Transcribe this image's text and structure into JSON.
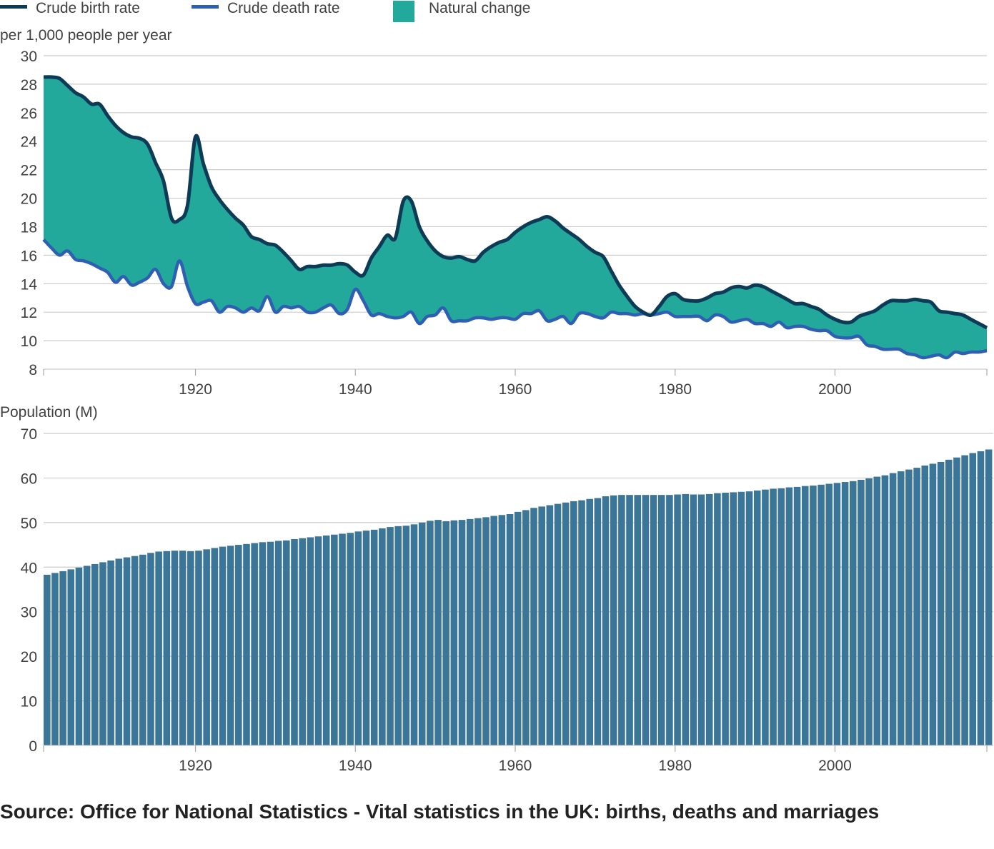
{
  "legend": {
    "birth_label": "Crude birth rate",
    "death_label": "Crude death rate",
    "natural_label": "Natural change"
  },
  "colors": {
    "birth": "#0b3b56",
    "death": "#2e5fb3",
    "natural": "#23a89c",
    "population": "#3b7698",
    "grid": "#cccccc",
    "axis": "#aaaaaa"
  },
  "chart_data": [
    {
      "type": "area",
      "ylabel": "per 1,000 people per year",
      "ylim": [
        8,
        30
      ],
      "yticks": [
        8,
        10,
        12,
        14,
        16,
        18,
        20,
        22,
        24,
        26,
        28,
        30
      ],
      "xlim": [
        1901,
        2019
      ],
      "xticks": [
        1920,
        1940,
        1960,
        1980,
        2000
      ],
      "grid": true,
      "legend_position": "top-left",
      "series": [
        {
          "name": "Crude birth rate",
          "x": [
            1901,
            1902,
            1903,
            1904,
            1905,
            1906,
            1907,
            1908,
            1909,
            1910,
            1911,
            1912,
            1913,
            1914,
            1915,
            1916,
            1917,
            1918,
            1919,
            1920,
            1921,
            1922,
            1923,
            1924,
            1925,
            1926,
            1927,
            1928,
            1929,
            1930,
            1931,
            1932,
            1933,
            1934,
            1935,
            1936,
            1937,
            1938,
            1939,
            1940,
            1941,
            1942,
            1943,
            1944,
            1945,
            1946,
            1947,
            1948,
            1949,
            1950,
            1951,
            1952,
            1953,
            1954,
            1955,
            1956,
            1957,
            1958,
            1959,
            1960,
            1961,
            1962,
            1963,
            1964,
            1965,
            1966,
            1967,
            1968,
            1969,
            1970,
            1971,
            1972,
            1973,
            1974,
            1975,
            1976,
            1977,
            1978,
            1979,
            1980,
            1981,
            1982,
            1983,
            1984,
            1985,
            1986,
            1987,
            1988,
            1989,
            1990,
            1991,
            1992,
            1993,
            1994,
            1995,
            1996,
            1997,
            1998,
            1999,
            2000,
            2001,
            2002,
            2003,
            2004,
            2005,
            2006,
            2007,
            2008,
            2009,
            2010,
            2011,
            2012,
            2013,
            2014,
            2015,
            2016,
            2017,
            2018,
            2019
          ],
          "values": [
            28.5,
            28.5,
            28.4,
            27.9,
            27.4,
            27.1,
            26.6,
            26.6,
            25.8,
            25.1,
            24.6,
            24.3,
            24.2,
            23.8,
            22.5,
            21.2,
            18.6,
            18.5,
            19.5,
            24.3,
            22.4,
            20.8,
            19.9,
            19.2,
            18.6,
            18.1,
            17.3,
            17.1,
            16.8,
            16.7,
            16.2,
            15.6,
            15.0,
            15.2,
            15.2,
            15.3,
            15.3,
            15.4,
            15.3,
            14.8,
            14.6,
            15.8,
            16.6,
            17.4,
            17.2,
            19.8,
            19.8,
            18.0,
            17.0,
            16.3,
            15.9,
            15.8,
            15.9,
            15.7,
            15.6,
            16.2,
            16.6,
            16.9,
            17.1,
            17.6,
            18.0,
            18.3,
            18.5,
            18.7,
            18.4,
            17.9,
            17.5,
            17.1,
            16.6,
            16.2,
            15.9,
            14.9,
            13.9,
            13.1,
            12.4,
            12.0,
            11.8,
            12.4,
            13.1,
            13.3,
            12.9,
            12.8,
            12.8,
            13.0,
            13.3,
            13.4,
            13.7,
            13.8,
            13.7,
            13.9,
            13.8,
            13.5,
            13.2,
            12.9,
            12.6,
            12.6,
            12.4,
            12.2,
            11.8,
            11.5,
            11.3,
            11.3,
            11.7,
            11.9,
            12.1,
            12.5,
            12.8,
            12.8,
            12.8,
            12.9,
            12.8,
            12.7,
            12.1,
            12.0,
            11.9,
            11.8,
            11.5,
            11.2,
            10.9
          ]
        },
        {
          "name": "Crude death rate",
          "x": [
            1901,
            1902,
            1903,
            1904,
            1905,
            1906,
            1907,
            1908,
            1909,
            1910,
            1911,
            1912,
            1913,
            1914,
            1915,
            1916,
            1917,
            1918,
            1919,
            1920,
            1921,
            1922,
            1923,
            1924,
            1925,
            1926,
            1927,
            1928,
            1929,
            1930,
            1931,
            1932,
            1933,
            1934,
            1935,
            1936,
            1937,
            1938,
            1939,
            1940,
            1941,
            1942,
            1943,
            1944,
            1945,
            1946,
            1947,
            1948,
            1949,
            1950,
            1951,
            1952,
            1953,
            1954,
            1955,
            1956,
            1957,
            1958,
            1959,
            1960,
            1961,
            1962,
            1963,
            1964,
            1965,
            1966,
            1967,
            1968,
            1969,
            1970,
            1971,
            1972,
            1973,
            1974,
            1975,
            1976,
            1977,
            1978,
            1979,
            1980,
            1981,
            1982,
            1983,
            1984,
            1985,
            1986,
            1987,
            1988,
            1989,
            1990,
            1991,
            1992,
            1993,
            1994,
            1995,
            1996,
            1997,
            1998,
            1999,
            2000,
            2001,
            2002,
            2003,
            2004,
            2005,
            2006,
            2007,
            2008,
            2009,
            2010,
            2011,
            2012,
            2013,
            2014,
            2015,
            2016,
            2017,
            2018,
            2019
          ],
          "values": [
            17.1,
            16.5,
            16.0,
            16.3,
            15.7,
            15.6,
            15.4,
            15.1,
            14.8,
            14.1,
            14.5,
            13.9,
            14.1,
            14.4,
            15.0,
            14.0,
            13.8,
            15.6,
            13.8,
            12.6,
            12.7,
            12.8,
            12.0,
            12.4,
            12.3,
            12.0,
            12.3,
            12.1,
            13.1,
            12.0,
            12.4,
            12.3,
            12.4,
            12.0,
            12.0,
            12.3,
            12.5,
            11.9,
            12.2,
            13.6,
            12.8,
            11.8,
            11.9,
            11.7,
            11.6,
            11.7,
            12.0,
            11.2,
            11.7,
            11.8,
            12.3,
            11.4,
            11.4,
            11.4,
            11.6,
            11.6,
            11.5,
            11.6,
            11.6,
            11.5,
            11.9,
            11.9,
            12.1,
            11.4,
            11.5,
            11.7,
            11.2,
            11.9,
            11.9,
            11.7,
            11.6,
            12.0,
            11.9,
            11.9,
            11.8,
            11.9,
            11.8,
            11.9,
            12.0,
            11.7,
            11.7,
            11.7,
            11.7,
            11.4,
            11.8,
            11.7,
            11.3,
            11.4,
            11.5,
            11.2,
            11.2,
            11.0,
            11.3,
            10.9,
            11.0,
            11.0,
            10.8,
            10.7,
            10.7,
            10.3,
            10.2,
            10.2,
            10.3,
            9.7,
            9.6,
            9.4,
            9.4,
            9.4,
            9.1,
            9.0,
            8.8,
            8.9,
            9.0,
            8.8,
            9.2,
            9.1,
            9.2,
            9.2,
            9.3
          ]
        }
      ]
    },
    {
      "type": "bar",
      "ylabel": "Population (M)",
      "ylim": [
        0,
        70
      ],
      "yticks": [
        0,
        10,
        20,
        30,
        40,
        50,
        60,
        70
      ],
      "xlim": [
        1901,
        2019
      ],
      "xticks": [
        1920,
        1940,
        1960,
        1980,
        2000
      ],
      "grid": true,
      "series": [
        {
          "name": "Population (M)",
          "x": [
            1901,
            1902,
            1903,
            1904,
            1905,
            1906,
            1907,
            1908,
            1909,
            1910,
            1911,
            1912,
            1913,
            1914,
            1915,
            1916,
            1917,
            1918,
            1919,
            1920,
            1921,
            1922,
            1923,
            1924,
            1925,
            1926,
            1927,
            1928,
            1929,
            1930,
            1931,
            1932,
            1933,
            1934,
            1935,
            1936,
            1937,
            1938,
            1939,
            1940,
            1941,
            1942,
            1943,
            1944,
            1945,
            1946,
            1947,
            1948,
            1949,
            1950,
            1951,
            1952,
            1953,
            1954,
            1955,
            1956,
            1957,
            1958,
            1959,
            1960,
            1961,
            1962,
            1963,
            1964,
            1965,
            1966,
            1967,
            1968,
            1969,
            1970,
            1971,
            1972,
            1973,
            1974,
            1975,
            1976,
            1977,
            1978,
            1979,
            1980,
            1981,
            1982,
            1983,
            1984,
            1985,
            1986,
            1987,
            1988,
            1989,
            1990,
            1991,
            1992,
            1993,
            1994,
            1995,
            1996,
            1997,
            1998,
            1999,
            2000,
            2001,
            2002,
            2003,
            2004,
            2005,
            2006,
            2007,
            2008,
            2009,
            2010,
            2011,
            2012,
            2013,
            2014,
            2015,
            2016,
            2017,
            2018,
            2019
          ],
          "values": [
            38.3,
            38.7,
            39.1,
            39.5,
            39.9,
            40.3,
            40.7,
            41.1,
            41.5,
            41.9,
            42.2,
            42.5,
            42.8,
            43.2,
            43.5,
            43.6,
            43.7,
            43.7,
            43.6,
            43.7,
            44.0,
            44.3,
            44.6,
            44.8,
            45.0,
            45.2,
            45.4,
            45.6,
            45.7,
            45.9,
            46.0,
            46.3,
            46.5,
            46.7,
            46.9,
            47.1,
            47.3,
            47.5,
            47.7,
            48.0,
            48.2,
            48.4,
            48.7,
            49.0,
            49.2,
            49.3,
            49.6,
            50.0,
            50.4,
            50.6,
            50.3,
            50.5,
            50.6,
            50.8,
            51.0,
            51.2,
            51.5,
            51.7,
            51.9,
            52.4,
            52.8,
            53.3,
            53.6,
            53.9,
            54.2,
            54.5,
            54.8,
            55.0,
            55.3,
            55.5,
            55.9,
            56.1,
            56.2,
            56.2,
            56.2,
            56.2,
            56.2,
            56.2,
            56.2,
            56.3,
            56.4,
            56.3,
            56.3,
            56.4,
            56.6,
            56.7,
            56.8,
            56.9,
            57.0,
            57.2,
            57.4,
            57.6,
            57.7,
            57.9,
            58.0,
            58.2,
            58.3,
            58.5,
            58.7,
            58.9,
            59.1,
            59.3,
            59.6,
            59.9,
            60.3,
            60.6,
            61.1,
            61.5,
            61.9,
            62.3,
            62.8,
            63.2,
            63.6,
            64.1,
            64.6,
            65.1,
            65.6,
            66.0,
            66.4
          ]
        }
      ]
    }
  ],
  "source": "Source: Office for National Statistics - Vital statistics in the UK: births, deaths and marriages"
}
